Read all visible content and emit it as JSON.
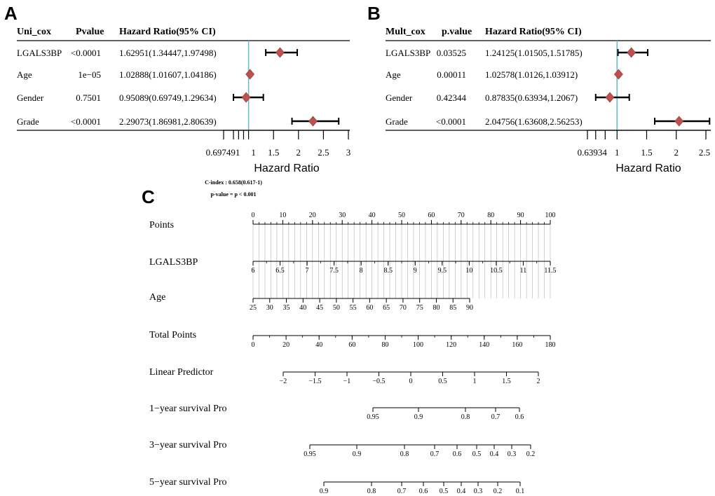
{
  "chart_data": [
    {
      "type": "forest",
      "panel": "A",
      "columns": [
        "Uni_cox",
        "Pvalue",
        "Hazard Ratio(95% CI)"
      ],
      "rows": [
        {
          "variable": "LGALS3BP",
          "p": "<0.0001",
          "hr_text": "1.62951(1.34447,1.97498)",
          "hr": 1.62951,
          "lo": 1.34447,
          "hi": 1.97498
        },
        {
          "variable": "Age",
          "p": "1e−05",
          "hr_text": "1.02888(1.01607,1.04186)",
          "hr": 1.02888,
          "lo": 1.01607,
          "hi": 1.04186
        },
        {
          "variable": "Gender",
          "p": "0.7501",
          "hr_text": "0.95089(0.69749,1.29634)",
          "hr": 0.95089,
          "lo": 0.69749,
          "hi": 1.29634
        },
        {
          "variable": "Grade",
          "p": "<0.0001",
          "hr_text": "2.29073(1.86981,2.80639)",
          "hr": 2.29073,
          "lo": 1.86981,
          "hi": 2.80639
        }
      ],
      "xlabel": "Hazard Ratio",
      "reference_line": 1,
      "ticks": [
        0.697491,
        1,
        1.5,
        2,
        2.5,
        3
      ],
      "tick_labels": [
        "0.697491",
        "",
        "1.5",
        "2",
        "2.5",
        "3"
      ],
      "minor_ticks": [
        0.5,
        0.8,
        0.9
      ],
      "xlim": [
        0.5,
        3
      ]
    },
    {
      "type": "forest",
      "panel": "B",
      "columns": [
        "Mult_cox",
        "p.value",
        "Hazard Ratio(95% CI)"
      ],
      "rows": [
        {
          "variable": "LGALS3BP",
          "p": "0.03525",
          "hr_text": "1.24125(1.01505,1.51785)",
          "hr": 1.24125,
          "lo": 1.01505,
          "hi": 1.51785
        },
        {
          "variable": "Age",
          "p": "0.00011",
          "hr_text": "1.02578(1.0126,1.03912)",
          "hr": 1.02578,
          "lo": 1.0126,
          "hi": 1.03912
        },
        {
          "variable": "Gender",
          "p": "0.42344",
          "hr_text": "0.87835(0.63934,1.2067)",
          "hr": 0.87835,
          "lo": 0.63934,
          "hi": 1.2067
        },
        {
          "variable": "Grade",
          "p": "<0.0001",
          "hr_text": "2.04756(1.63608,2.56253)",
          "hr": 2.04756,
          "lo": 1.63608,
          "hi": 2.56253
        }
      ],
      "xlabel": "Hazard Ratio",
      "reference_line": 1,
      "ticks": [
        0.63934,
        1,
        1.5,
        2,
        2.5
      ],
      "tick_labels": [
        "0.63934",
        "1",
        "1.5",
        "2",
        "2.5"
      ],
      "minor_ticks": [
        0.5,
        0.8
      ],
      "xlim": [
        0.5,
        2.56253
      ]
    },
    {
      "type": "nomogram",
      "panel": "C",
      "annotation_cindex": "C-index : 0.658(0.617-1)",
      "annotation_pvalue": "p-value = p < 0.001",
      "scales": [
        {
          "name": "Points",
          "domain": [
            0,
            100
          ],
          "labels": [
            "0",
            "10",
            "20",
            "30",
            "40",
            "50",
            "60",
            "70",
            "80",
            "90",
            "100"
          ],
          "minor_step": 2
        },
        {
          "name": "LGALS3BP",
          "domain": [
            6,
            11.5
          ],
          "labels": [
            "6",
            "6.5",
            "7",
            "7.5",
            "8",
            "8.5",
            "9",
            "9.5",
            "10",
            "10.5",
            "11",
            "11.5"
          ]
        },
        {
          "name": "Age",
          "domain": [
            25,
            90
          ],
          "labels": [
            "25",
            "30",
            "35",
            "40",
            "45",
            "50",
            "55",
            "60",
            "65",
            "70",
            "75",
            "80",
            "85",
            "90"
          ]
        },
        {
          "name": "Total Points",
          "domain": [
            0,
            180
          ],
          "labels": [
            "0",
            "20",
            "40",
            "60",
            "80",
            "100",
            "120",
            "140",
            "160",
            "180"
          ],
          "minor_step": 10
        },
        {
          "name": "Linear Predictor",
          "domain": [
            -2,
            2
          ],
          "labels": [
            "−2",
            "−1.5",
            "−1",
            "−0.5",
            "0",
            "0.5",
            "1",
            "1.5",
            "2"
          ]
        },
        {
          "name": "1−year survival Pro",
          "domain": [
            0.95,
            0.6
          ],
          "labels": [
            "0.95",
            "0.9",
            "0.8",
            "0.7",
            "0.6"
          ]
        },
        {
          "name": "3−year survival Pro",
          "domain": [
            0.95,
            0.2
          ],
          "labels": [
            "0.95",
            "0.9",
            "0.8",
            "0.7",
            "0.6",
            "0.5",
            "0.4",
            "0.3",
            "0.2"
          ]
        },
        {
          "name": "5−year survival Pro",
          "domain": [
            0.9,
            0.1
          ],
          "labels": [
            "0.9",
            "0.8",
            "0.7",
            "0.6",
            "0.5",
            "0.4",
            "0.3",
            "0.2",
            "0.1"
          ]
        }
      ]
    }
  ],
  "panel_labels": [
    "A",
    "B",
    "C"
  ],
  "colors": {
    "diamond": "#c0504d",
    "reference_line": "#5bbcd6",
    "annotation": "#e00000",
    "grid": "#b0b0b0",
    "text": "#000000"
  }
}
